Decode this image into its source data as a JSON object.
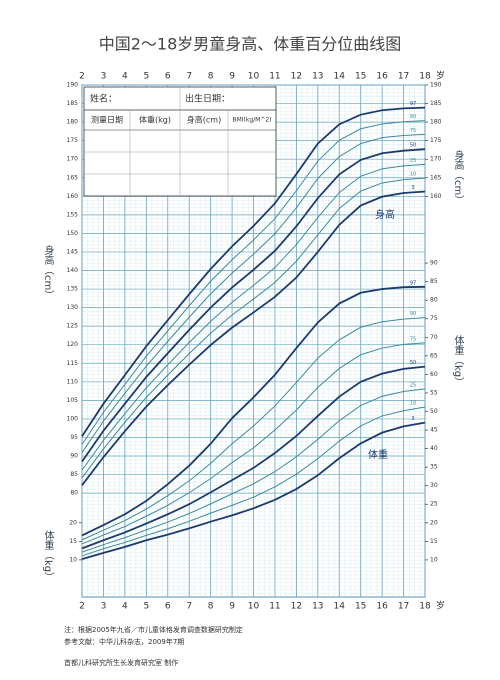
{
  "chart_data": {
    "type": "line",
    "title": "中国2～18岁男童身高、体重百分位曲线图",
    "x_unit": "岁",
    "x": [
      2,
      3,
      4,
      5,
      6,
      7,
      8,
      9,
      10,
      11,
      12,
      13,
      14,
      15,
      16,
      17,
      18
    ],
    "xlim": [
      2,
      18
    ],
    "xticks": [
      2,
      3,
      4,
      5,
      6,
      7,
      8,
      9,
      10,
      11,
      12,
      13,
      14,
      15,
      16,
      17,
      18
    ],
    "ylim": [
      52,
      190
    ],
    "y2lim": [
      0,
      138
    ],
    "yticks": [
      80,
      85,
      90,
      95,
      100,
      105,
      110,
      115,
      120,
      125,
      130,
      135,
      140,
      145,
      150,
      155,
      160,
      165,
      170,
      175,
      180,
      185,
      190
    ],
    "left_y2ticks": [
      10,
      15,
      20
    ],
    "right_yticks": [
      160,
      165,
      170,
      175,
      180,
      185,
      190
    ],
    "y2ticks": [
      10,
      15,
      20,
      25,
      30,
      35,
      40,
      45,
      50,
      55,
      60,
      65,
      70,
      75,
      80,
      85,
      90
    ],
    "y_label": "身高（cm）",
    "y2_label": "体重（kg）",
    "height_label": "身高",
    "weight_label": "体重",
    "series": [
      {
        "name": "97",
        "color": "#1d3a6e",
        "values": [
          95.3,
          104.1,
          111.8,
          119.6,
          126.6,
          133.6,
          140.4,
          146.5,
          152.0,
          158.1,
          166.0,
          174.2,
          179.4,
          182.0,
          183.2,
          183.7,
          183.9
        ]
      },
      {
        "name": "90",
        "color": "#3f8a9c",
        "values": [
          93.1,
          101.8,
          109.3,
          116.9,
          123.7,
          130.5,
          137.1,
          142.9,
          148.2,
          154.0,
          161.5,
          169.5,
          175.1,
          178.2,
          179.5,
          180.1,
          180.4
        ]
      },
      {
        "name": "75",
        "color": "#3f8a9c",
        "values": [
          90.9,
          99.4,
          106.9,
          114.2,
          120.9,
          127.4,
          133.7,
          139.3,
          144.4,
          149.9,
          156.9,
          164.8,
          170.7,
          174.2,
          175.8,
          176.4,
          176.7
        ]
      },
      {
        "name": "50",
        "color": "#1d3a6e",
        "values": [
          88.5,
          96.8,
          104.1,
          111.3,
          117.7,
          124.0,
          130.0,
          135.4,
          140.2,
          145.3,
          151.9,
          159.5,
          165.9,
          169.8,
          171.6,
          172.3,
          172.7
        ]
      },
      {
        "name": "25",
        "color": "#3f8a9c",
        "values": [
          86.2,
          94.2,
          101.4,
          108.4,
          114.6,
          120.6,
          126.3,
          131.4,
          136.0,
          140.8,
          147.0,
          154.3,
          161.0,
          165.4,
          167.4,
          168.2,
          168.6
        ]
      },
      {
        "name": "10",
        "color": "#3f8a9c",
        "values": [
          84.1,
          91.9,
          99.1,
          105.8,
          111.8,
          117.6,
          123.1,
          128.0,
          132.3,
          136.8,
          142.5,
          149.6,
          156.7,
          161.4,
          163.6,
          164.5,
          164.9
        ]
      },
      {
        "name": "3",
        "color": "#1d3a6e",
        "values": [
          82.1,
          89.7,
          96.7,
          103.3,
          109.1,
          114.6,
          119.9,
          124.6,
          128.7,
          132.9,
          138.1,
          145.0,
          152.3,
          157.5,
          159.9,
          160.9,
          161.3
        ]
      },
      {
        "name": "97",
        "color": "#1d3a6e",
        "axis": "y2",
        "values": [
          16.6,
          19.4,
          22.3,
          25.9,
          30.4,
          35.4,
          41.3,
          48.2,
          53.8,
          59.9,
          67.1,
          74.0,
          79.1,
          82.0,
          83.0,
          83.5,
          83.6
        ]
      },
      {
        "name": "90",
        "color": "#3f8a9c",
        "axis": "y2",
        "values": [
          15.4,
          18.0,
          20.6,
          23.7,
          27.3,
          31.3,
          36.0,
          41.3,
          46.1,
          51.5,
          57.8,
          64.4,
          69.3,
          72.7,
          74.2,
          74.9,
          75.3
        ]
      },
      {
        "name": "75",
        "color": "#3f8a9c",
        "axis": "y2",
        "values": [
          14.3,
          16.7,
          19.0,
          21.8,
          24.7,
          28.1,
          31.9,
          36.2,
          40.2,
          45.0,
          50.4,
          56.5,
          61.6,
          65.3,
          67.1,
          68.1,
          68.5
        ]
      },
      {
        "name": "50",
        "color": "#1d3a6e",
        "axis": "y2",
        "values": [
          13.1,
          15.3,
          17.4,
          19.8,
          22.3,
          25.0,
          28.2,
          31.5,
          34.8,
          38.8,
          43.4,
          48.8,
          54.0,
          58.0,
          60.2,
          61.5,
          62.1
        ]
      },
      {
        "name": "25",
        "color": "#3f8a9c",
        "axis": "y2",
        "values": [
          12.1,
          14.1,
          16.0,
          18.1,
          20.2,
          22.5,
          25.1,
          27.8,
          30.5,
          33.8,
          37.8,
          42.5,
          47.5,
          51.6,
          54.1,
          55.4,
          56.1
        ]
      },
      {
        "name": "10",
        "color": "#3f8a9c",
        "axis": "y2",
        "values": [
          11.1,
          13.0,
          14.7,
          16.6,
          18.4,
          20.4,
          22.6,
          24.7,
          26.9,
          29.7,
          33.1,
          37.3,
          42.0,
          46.1,
          48.8,
          50.2,
          51.2
        ]
      },
      {
        "name": "3",
        "color": "#1d3a6e",
        "axis": "y2",
        "values": [
          10.2,
          11.9,
          13.5,
          15.3,
          16.8,
          18.5,
          20.3,
          22.0,
          23.9,
          26.2,
          29.1,
          32.8,
          37.4,
          41.4,
          44.3,
          46.0,
          47.0
        ]
      }
    ],
    "grid": true
  },
  "info_table": {
    "name_label": "姓名：",
    "birth_label": "出生日期：",
    "columns": [
      "测量日期",
      "体重(kg)",
      "身高(cm)",
      "BMI(kg/M^2)"
    ]
  },
  "notes": [
    "注：根据2005年九省／市儿童体格发育调查数据研究制定",
    "参考文献：中华儿科杂志，2009年7期"
  ],
  "maker": "首都儿科研究所生长发育研究室 制作"
}
